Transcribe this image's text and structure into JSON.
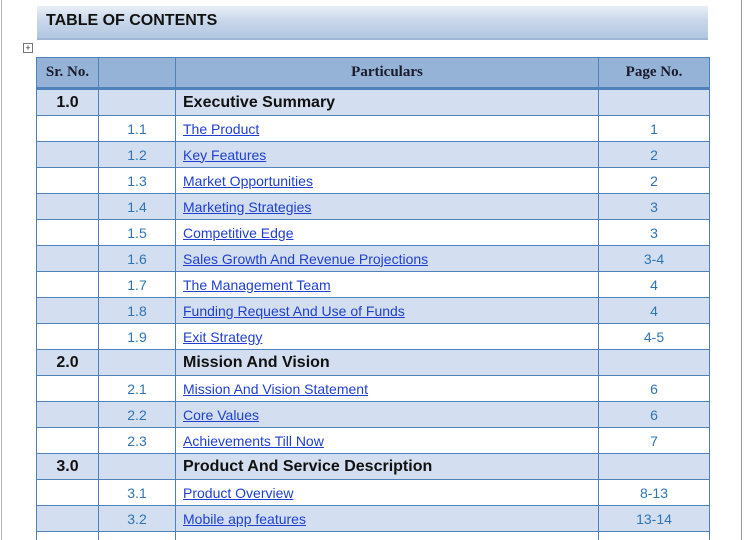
{
  "title": "TABLE OF CONTENTS",
  "header": [
    "Sr. No.",
    "Particulars",
    "Page No."
  ],
  "rows": [
    {
      "section": "1.0",
      "title": "Executive Summary"
    },
    {
      "no": "1.1",
      "title": "The Product",
      "page": "1"
    },
    {
      "no": "1.2",
      "title": "Key Features",
      "page": "2"
    },
    {
      "no": "1.3",
      "title": "Market Opportunities",
      "page": "2"
    },
    {
      "no": "1.4",
      "title": "Marketing Strategies",
      "page": "3"
    },
    {
      "no": "1.5",
      "title": "Competitive Edge",
      "page": "3"
    },
    {
      "no": "1.6",
      "title": "Sales Growth And Revenue Projections",
      "page": "3-4"
    },
    {
      "no": "1.7",
      "title": "The Management Team",
      "page": "4"
    },
    {
      "no": "1.8",
      "title": "Funding Request And Use of Funds",
      "page": "4"
    },
    {
      "no": "1.9",
      "title": "Exit Strategy",
      "page": "4-5"
    },
    {
      "section": "2.0",
      "title": "Mission And Vision"
    },
    {
      "no": "2.1",
      "title": "Mission And Vision Statement",
      "page": "6"
    },
    {
      "no": "2.2",
      "title": "Core Values",
      "page": "6"
    },
    {
      "no": "2.3",
      "title": "Achievements Till Now",
      "page": "7"
    },
    {
      "section": "3.0",
      "title": "Product And Service Description"
    },
    {
      "no": "3.1",
      "title": "Product Overview",
      "page": "8-13"
    },
    {
      "no": "3.2",
      "title": "Mobile app features",
      "page": "13-14"
    }
  ]
}
